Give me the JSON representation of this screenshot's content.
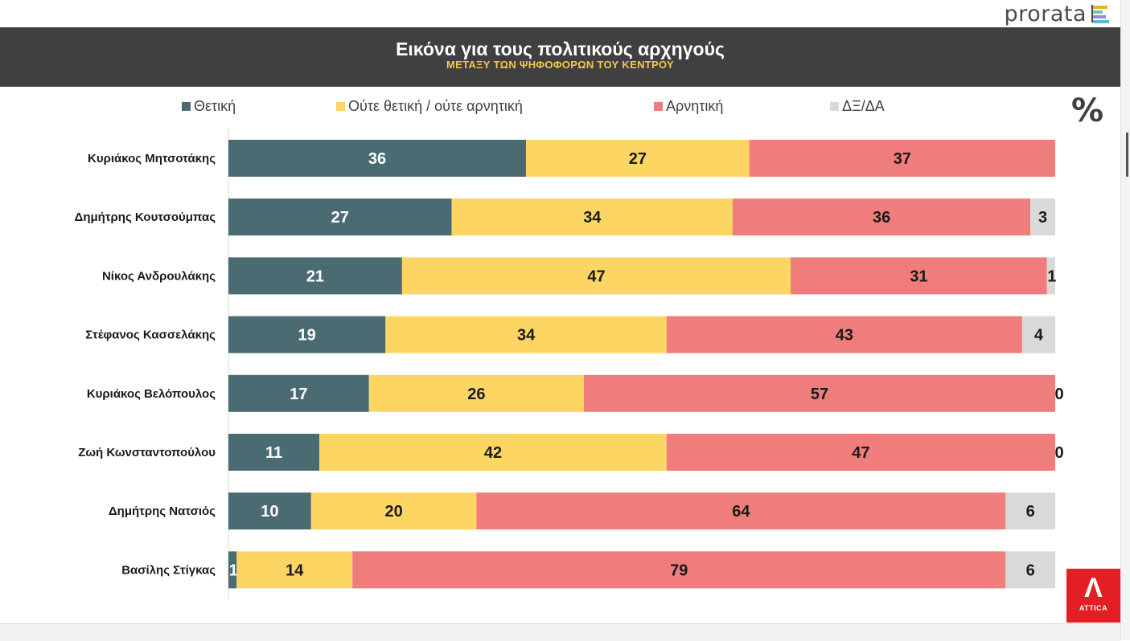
{
  "brand": {
    "name": "prorata"
  },
  "banner": {
    "title": "Εικόνα για τους πολιτικούς αρχηγούς",
    "subtitle": "ΜΕΤΑΞΥ ΤΩΝ ΨΗΦΟΦΟΡΩΝ ΤΟΥ ΚΕΝΤΡΟΥ"
  },
  "unit_label": "%",
  "logo": {
    "text": "ATTICA"
  },
  "colors": {
    "positive": "#4a6b72",
    "neutral": "#fcd562",
    "negative": "#ee7d7b",
    "dk": "#d9d9d9",
    "banner_bg": "#404040",
    "subtitle": "#f2c94c"
  },
  "chart_data": {
    "type": "bar",
    "orientation": "horizontal",
    "stacked": true,
    "title": "Εικόνα για τους πολιτικούς αρχηγούς",
    "subtitle": "ΜΕΤΑΞΥ ΤΩΝ ΨΗΦΟΦΟΡΩΝ ΤΟΥ ΚΕΝΤΡΟΥ",
    "unit": "%",
    "legend_position": "top",
    "categories": [
      "Κυριάκος Μητσοτάκης",
      "Δημήτρης Κουτσούμπας",
      "Νίκος Ανδρουλάκης",
      "Στέφανος Κασσελάκης",
      "Κυριάκος Βελόπουλος",
      "Ζωή Κωνσταντοπούλου",
      "Δημήτρης Νατσιός",
      "Βασίλης Στίγκας"
    ],
    "series": [
      {
        "name": "Θετική",
        "color": "#4a6b72",
        "label_color": "#ffffff",
        "values": [
          36,
          27,
          21,
          19,
          17,
          11,
          10,
          1
        ]
      },
      {
        "name": "Ούτε θετική / ούτε αρνητική",
        "color": "#fcd562",
        "label_color": "#1a1a1a",
        "values": [
          27,
          34,
          47,
          34,
          26,
          42,
          20,
          14
        ]
      },
      {
        "name": "Αρνητική",
        "color": "#ee7d7b",
        "label_color": "#1a1a1a",
        "values": [
          37,
          36,
          31,
          43,
          57,
          47,
          64,
          79
        ]
      },
      {
        "name": "ΔΞ/ΔΑ",
        "color": "#d9d9d9",
        "label_color": "#1a1a1a",
        "values": [
          0,
          3,
          1,
          4,
          0,
          0,
          6,
          6
        ],
        "show_zero": [
          false,
          true,
          true,
          true,
          true,
          true,
          true,
          true
        ]
      }
    ],
    "xlim": [
      0,
      100
    ],
    "grid": false
  }
}
